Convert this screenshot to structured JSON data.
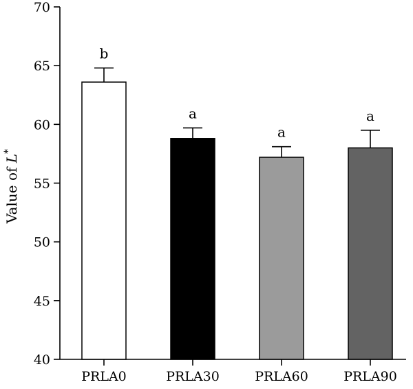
{
  "chart_data": {
    "type": "bar",
    "title": "",
    "xlabel": "",
    "ylabel": "Value of L*",
    "ylabel_parts": {
      "text": "Value of ",
      "italic": "L",
      "sup": "*"
    },
    "ylim": [
      40,
      70
    ],
    "yticks": [
      40,
      45,
      50,
      55,
      60,
      65,
      70
    ],
    "grid": false,
    "legend": "none",
    "categories": [
      "PRLA0",
      "PRLA30",
      "PRLA60",
      "PRLA90"
    ],
    "values": [
      63.6,
      58.8,
      57.2,
      58.0
    ],
    "errors": [
      1.2,
      0.9,
      0.9,
      1.5
    ],
    "significance": [
      "b",
      "a",
      "a",
      "a"
    ],
    "colors": [
      "#ffffff",
      "#000000",
      "#9b9b9b",
      "#636363"
    ]
  }
}
